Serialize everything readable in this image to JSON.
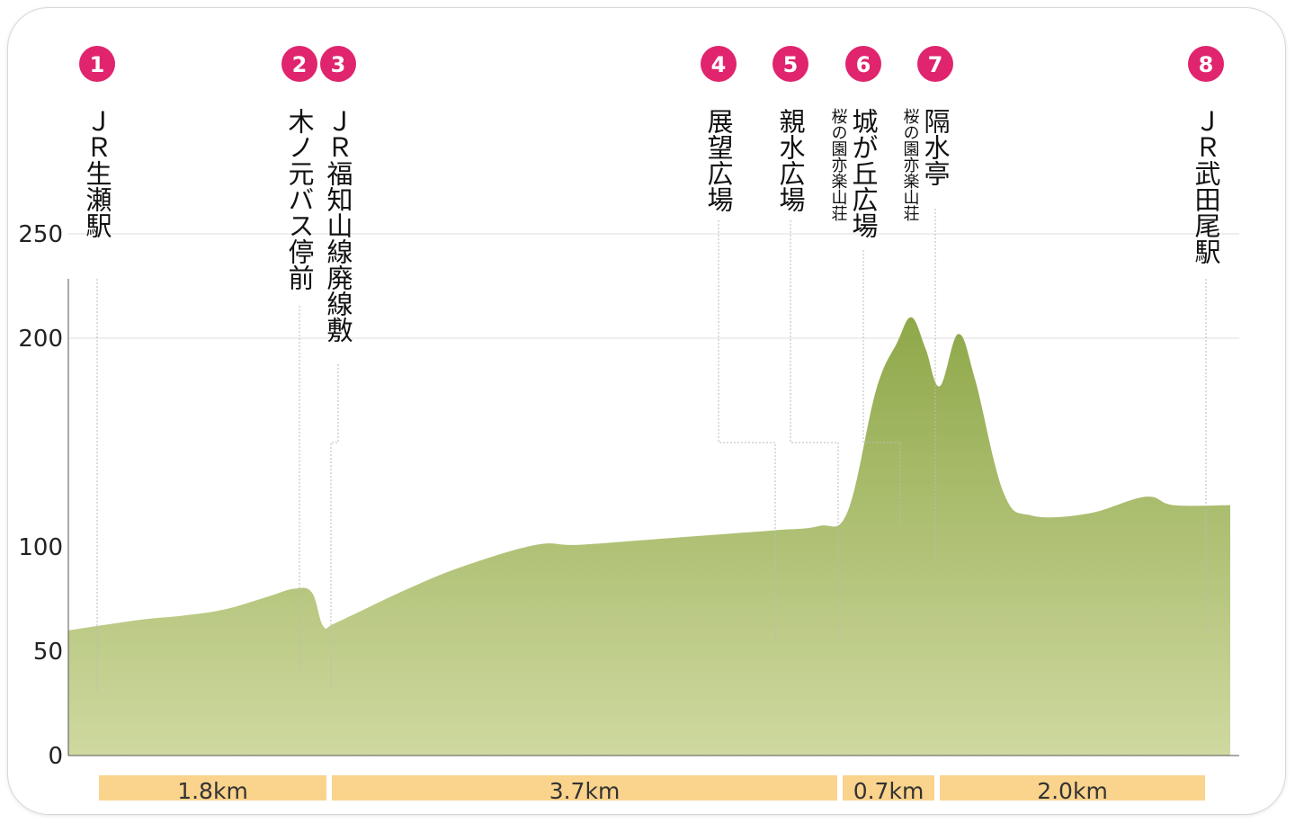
{
  "chart_data": {
    "type": "area",
    "yticks": [
      "250",
      "200",
      "100",
      "50",
      "0"
    ],
    "ylim": [
      0,
      300
    ],
    "x_unit": "km",
    "x_total": 8.2,
    "grid": "horizontal at 200 and 250",
    "fill_color_top": "#8fa849",
    "fill_color_bottom": "#cfd9a0",
    "marker_color": "#e0246e",
    "leader_color": "#bbbbbb",
    "distance_bar_color": "#fad38c",
    "profile": [
      {
        "x": 0.0,
        "y": 60
      },
      {
        "x": 0.5,
        "y": 65
      },
      {
        "x": 0.8,
        "y": 67
      },
      {
        "x": 1.1,
        "y": 70
      },
      {
        "x": 1.4,
        "y": 76
      },
      {
        "x": 1.6,
        "y": 80
      },
      {
        "x": 1.72,
        "y": 78
      },
      {
        "x": 1.8,
        "y": 62
      },
      {
        "x": 1.9,
        "y": 64
      },
      {
        "x": 2.4,
        "y": 80
      },
      {
        "x": 2.8,
        "y": 91
      },
      {
        "x": 3.3,
        "y": 101
      },
      {
        "x": 3.6,
        "y": 101
      },
      {
        "x": 4.2,
        "y": 104
      },
      {
        "x": 4.6,
        "y": 106
      },
      {
        "x": 5.0,
        "y": 108
      },
      {
        "x": 5.3,
        "y": 110
      },
      {
        "x": 5.5,
        "y": 117
      },
      {
        "x": 5.7,
        "y": 175
      },
      {
        "x": 5.85,
        "y": 198
      },
      {
        "x": 5.95,
        "y": 210
      },
      {
        "x": 6.05,
        "y": 195
      },
      {
        "x": 6.15,
        "y": 177
      },
      {
        "x": 6.28,
        "y": 202
      },
      {
        "x": 6.4,
        "y": 180
      },
      {
        "x": 6.6,
        "y": 126
      },
      {
        "x": 6.8,
        "y": 115
      },
      {
        "x": 7.2,
        "y": 116
      },
      {
        "x": 7.6,
        "y": 124
      },
      {
        "x": 7.8,
        "y": 120
      },
      {
        "x": 8.2,
        "y": 120
      }
    ],
    "stations": [
      {
        "num": "1",
        "name": "ＪＲ生瀬駅",
        "sub": "",
        "x": 0.2
      },
      {
        "num": "2",
        "name": "木ノ元バス停前",
        "sub": "",
        "x": 1.63
      },
      {
        "num": "3",
        "name": "ＪＲ福知山線廃線敷",
        "sub": "",
        "x": 1.85
      },
      {
        "num": "4",
        "name": "展望広場",
        "sub": "",
        "x": 5.0
      },
      {
        "num": "5",
        "name": "親水広場",
        "sub": "",
        "x": 5.45
      },
      {
        "num": "6",
        "name": "城が丘広場",
        "sub": "桜の園亦楽山荘",
        "x": 5.87
      },
      {
        "num": "7",
        "name": "隔水亭",
        "sub": "桜の園亦楽山荘",
        "x": 6.2
      },
      {
        "num": "8",
        "name": "ＪＲ武田尾駅",
        "sub": "",
        "x": 8.0
      }
    ],
    "distances": [
      {
        "label": "1.8km",
        "from": 0.2,
        "to": 1.83
      },
      {
        "label": "3.7km",
        "from": 1.86,
        "to": 5.45
      },
      {
        "label": "0.7km",
        "from": 5.48,
        "to": 6.13
      },
      {
        "label": "2.0km",
        "from": 6.16,
        "to": 8.0
      }
    ]
  }
}
